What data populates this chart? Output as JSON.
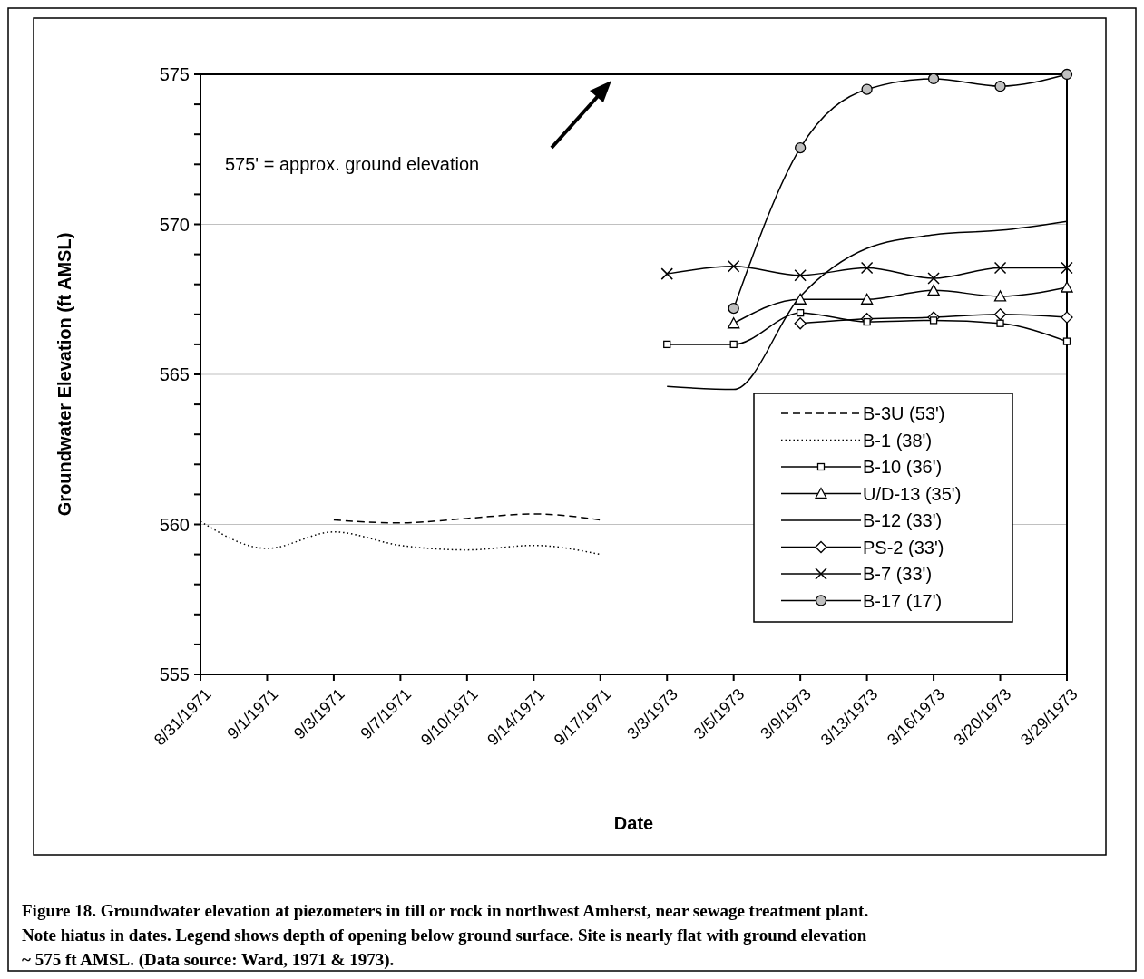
{
  "chart_data": {
    "type": "line",
    "xlabel": "Date",
    "ylabel": "Groundwater Elevation (ft AMSL)",
    "categories": [
      "8/31/1971",
      "9/1/1971",
      "9/3/1971",
      "9/7/1971",
      "9/10/1971",
      "9/14/1971",
      "9/17/1971",
      "3/3/1973",
      "3/5/1973",
      "3/9/1973",
      "3/13/1973",
      "3/16/1973",
      "3/20/1973",
      "3/29/1973"
    ],
    "series": [
      {
        "name": "B-3U (53')",
        "color": "#000000",
        "line_style": "dashed",
        "marker": "none",
        "values": [
          null,
          null,
          560.15,
          560.05,
          560.2,
          560.35,
          560.15,
          null,
          null,
          null,
          null,
          null,
          null,
          null
        ]
      },
      {
        "name": "B-1 (38')",
        "color": "#000000",
        "line_style": "dotted",
        "marker": "none",
        "values": [
          560.1,
          559.2,
          559.75,
          559.3,
          559.15,
          559.3,
          559.0,
          null,
          null,
          null,
          null,
          null,
          null,
          null
        ]
      },
      {
        "name": "B-10 (36')",
        "color": "#000000",
        "line_style": "solid",
        "marker": "square",
        "values": [
          null,
          null,
          null,
          null,
          null,
          null,
          null,
          566.0,
          566.0,
          567.05,
          566.75,
          566.8,
          566.7,
          566.1
        ]
      },
      {
        "name": "U/D-13 (35')",
        "color": "#000000",
        "line_style": "solid",
        "marker": "triangle",
        "values": [
          null,
          null,
          null,
          null,
          null,
          null,
          null,
          null,
          566.7,
          567.5,
          567.5,
          567.8,
          567.6,
          567.9
        ]
      },
      {
        "name": "B-12 (33')",
        "color": "#000000",
        "line_style": "solid",
        "marker": "none",
        "values": [
          null,
          null,
          null,
          null,
          null,
          null,
          null,
          564.6,
          564.5,
          567.6,
          569.2,
          569.65,
          569.8,
          570.1
        ]
      },
      {
        "name": "PS-2 (33')",
        "color": "#000000",
        "line_style": "solid",
        "marker": "diamond",
        "values": [
          null,
          null,
          null,
          null,
          null,
          null,
          null,
          null,
          null,
          566.7,
          566.85,
          566.9,
          567.0,
          566.9
        ]
      },
      {
        "name": "B-7 (33')",
        "color": "#000000",
        "line_style": "solid",
        "marker": "cross",
        "values": [
          null,
          null,
          null,
          null,
          null,
          null,
          null,
          568.35,
          568.6,
          568.3,
          568.55,
          568.2,
          568.55,
          568.55
        ]
      },
      {
        "name": "B-17 (17')",
        "color": "#000000",
        "line_style": "solid",
        "marker": "circle",
        "values": [
          null,
          null,
          null,
          null,
          null,
          null,
          null,
          null,
          567.2,
          572.55,
          574.5,
          574.85,
          574.6,
          575.0
        ]
      }
    ],
    "ylim": [
      555,
      575
    ],
    "yticks": [
      555,
      {
        "value": 556,
        "label": null
      },
      {
        "value": 557,
        "label": null
      },
      {
        "value": 558,
        "label": null
      },
      {
        "value": 559,
        "label": null
      },
      560,
      {
        "value": 561,
        "label": null
      },
      {
        "value": 562,
        "label": null
      },
      {
        "value": 563,
        "label": null
      },
      {
        "value": 564,
        "label": null
      },
      565,
      {
        "value": 566,
        "label": null
      },
      {
        "value": 567,
        "label": null
      },
      {
        "value": 568,
        "label": null
      },
      {
        "value": 569,
        "label": null
      },
      570,
      {
        "value": 571,
        "label": null
      },
      {
        "value": 572,
        "label": null
      },
      {
        "value": 573,
        "label": null
      },
      {
        "value": 574,
        "label": null
      },
      575
    ],
    "grid": "y",
    "legend": "bottom right",
    "annotations": [
      "575' = approx. ground elevation",
      "Figure 18. Groundwater elevation at piezometers in till or rock in northwest Amherst, near sewage treatment plant.   Note hiatus in dates.  Legend shows depth of opening below ground surface.  Site is nearly flat with ground elevation ~ 575 ft AMSL.  (Data source: Ward, 1971 & 1973)."
    ]
  }
}
